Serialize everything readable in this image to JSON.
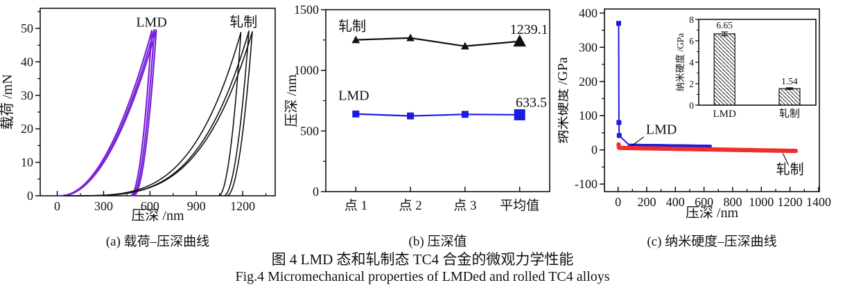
{
  "figure": {
    "caption_zh": "图 4  LMD 态和轧制态 TC4 合金的微观力学性能",
    "caption_en": "Fig.4  Micromechanical properties of LMDed and rolled TC4 alloys"
  },
  "colors": {
    "lmd_purple": "#7B21D8",
    "lmd_blue": "#1C1CE0",
    "rolled_black": "#111111",
    "rolled_red": "#EF2F2F"
  },
  "chart_data": [
    {
      "id": "a",
      "type": "line",
      "variant": "indentation-loops",
      "caption": "(a) 载荷–压深曲线",
      "xlabel": "压深 /nm",
      "ylabel": "载荷 /mN",
      "xlim": [
        -110,
        1410
      ],
      "ylim": [
        0,
        56
      ],
      "xticks": [
        0,
        300,
        600,
        900,
        1200
      ],
      "yticks": [
        0,
        10,
        20,
        30,
        40,
        50
      ],
      "x_minor_step": 150,
      "y_minor_step": 5,
      "series": [
        {
          "name": "LMD",
          "color_key": "lmd_purple",
          "line_width": 2.2,
          "load_exp": 2.0,
          "unload_exp": 2.0,
          "loops": [
            {
              "start": 20,
              "peak": 612,
              "residual": 474,
              "peak_load": 49.3
            },
            {
              "start": 28,
              "peak": 628,
              "residual": 484,
              "peak_load": 49.6
            },
            {
              "start": 24,
              "peak": 641,
              "residual": 493,
              "peak_load": 49.5
            }
          ],
          "label": {
            "text": "LMD",
            "x": 610,
            "y": 50.5,
            "anchor": "middle"
          }
        },
        {
          "name": "轧制",
          "color_key": "rolled_black",
          "line_width": 1.6,
          "load_exp": 3.8,
          "unload_exp": 2.0,
          "loops": [
            {
              "start": 40,
              "peak": 1188,
              "residual": 1044,
              "peak_load": 48.8
            },
            {
              "start": 55,
              "peak": 1240,
              "residual": 1078,
              "peak_load": 49.2
            },
            {
              "start": 48,
              "peak": 1262,
              "residual": 1098,
              "peak_load": 49.0
            }
          ],
          "label": {
            "text": "轧制",
            "x": 1205,
            "y": 50.5,
            "anchor": "middle"
          }
        }
      ]
    },
    {
      "id": "b",
      "type": "line",
      "variant": "category-points",
      "caption": "(b) 压深值",
      "xlabel": "",
      "ylabel": "压深 /nm",
      "categories": [
        "点 1",
        "点 2",
        "点 3",
        "平均值"
      ],
      "xlim": [
        0.45,
        4.55
      ],
      "ylim": [
        0,
        1500
      ],
      "yticks": [
        0,
        500,
        1000,
        1500
      ],
      "y_minor_step": 250,
      "series": [
        {
          "name": "轧制",
          "color_key": "rolled_black",
          "marker": "triangle",
          "values": [
            1251,
            1267,
            1199,
            1239.1
          ],
          "mean_value": 1239.1,
          "label": {
            "text": "轧制",
            "x": 0.68,
            "y": 1325,
            "anchor": "start"
          },
          "value_label": {
            "text": "1239.1",
            "x": 4.52,
            "y": 1300,
            "anchor": "end"
          }
        },
        {
          "name": "LMD",
          "color_key": "lmd_blue",
          "marker": "square",
          "values": [
            640,
            624,
            637,
            633.5
          ],
          "mean_value": 633.5,
          "label": {
            "text": "LMD",
            "x": 0.68,
            "y": 755,
            "anchor": "start"
          },
          "value_label": {
            "text": "633.5",
            "x": 4.5,
            "y": 700,
            "anchor": "end"
          }
        }
      ]
    },
    {
      "id": "c",
      "type": "scatter",
      "variant": "hardness-depth",
      "caption": "(c) 纳米硬度–压深曲线",
      "xlabel": "压深 /nm",
      "ylabel": "纳米硬度 /GPa",
      "xlim": [
        -95,
        1405
      ],
      "ylim": [
        -122,
        412
      ],
      "xticks": [
        0,
        200,
        400,
        600,
        800,
        1000,
        1200,
        1400
      ],
      "yticks": [
        -100,
        0,
        100,
        200,
        300,
        400
      ],
      "x_minor_step": 100,
      "y_minor_step": 50,
      "series": [
        {
          "name": "LMD",
          "color_key": "lmd_blue",
          "marker": "square",
          "marker_size": 7,
          "line_width": 2,
          "points": [
            [
              4,
              370
            ],
            [
              6,
              80
            ],
            [
              8,
              42
            ]
          ],
          "dense": {
            "from": 85,
            "to": 635,
            "step": 12,
            "y_start": 11,
            "y_end": 8
          },
          "annotation": {
            "text": "LMD",
            "x": 195,
            "y": 47,
            "anchor": "start",
            "leader": [
              [
                180,
                38
              ],
              [
                95,
                12
              ]
            ]
          }
        },
        {
          "name": "轧制",
          "color_key": "rolled_red",
          "marker": "circle",
          "marker_size": 6.4,
          "line_width": 2,
          "points": [
            [
              4,
              16
            ],
            [
              5,
              10
            ],
            [
              7,
              7
            ]
          ],
          "dense": {
            "from": 10,
            "to": 1240,
            "step": 10,
            "y_start": 6,
            "y_end": -3
          },
          "annotation": {
            "text": "轧制",
            "x": 1200,
            "y": -70,
            "anchor": "middle",
            "leader": [
              [
                1150,
                -10
              ],
              [
                1190,
                -45
              ]
            ]
          }
        }
      ],
      "inset": {
        "type": "bar",
        "ylabel": "纳米硬度 /GPa",
        "ylim": [
          0,
          8
        ],
        "yticks": [
          0,
          2,
          4,
          6,
          8
        ],
        "y_minor_step": 1,
        "categories": [
          "LMD",
          "轧制"
        ],
        "values": [
          6.65,
          1.54
        ],
        "errors": [
          0.18,
          0.08
        ],
        "value_labels": [
          "6.65",
          "1.54"
        ]
      }
    }
  ]
}
